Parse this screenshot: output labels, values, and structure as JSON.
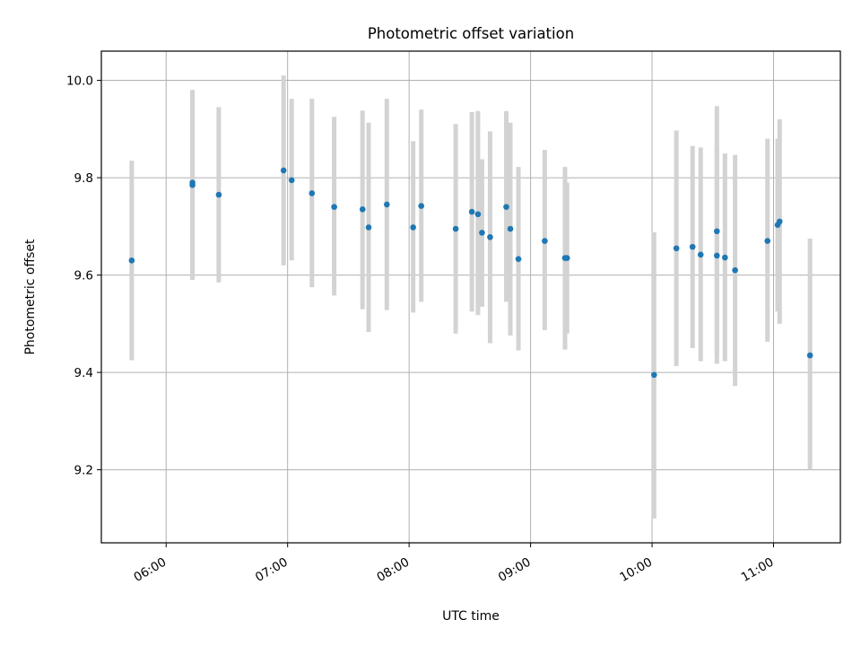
{
  "chart_data": {
    "type": "scatter",
    "title": "Photometric offset variation",
    "xlabel": "UTC time",
    "ylabel": "Photometric offset",
    "x_ticks": [
      "06:00",
      "07:00",
      "08:00",
      "09:00",
      "10:00",
      "11:00"
    ],
    "y_ticks": [
      "9.2",
      "9.4",
      "9.6",
      "9.8",
      "10.0"
    ],
    "xlim": [
      "05:28",
      "11:33"
    ],
    "ylim": [
      9.05,
      10.06
    ],
    "grid": true,
    "colors": {
      "points": "#1f77b4",
      "errorbars": "#d3d3d3",
      "grid": "#b0b0b0"
    },
    "points": [
      {
        "x": "05:43",
        "y": 9.63,
        "err_low": 9.425,
        "err_high": 9.835
      },
      {
        "x": "06:13",
        "y": 9.79,
        "err_low": 9.59,
        "err_high": 9.98
      },
      {
        "x": "06:13",
        "y": 9.785,
        "err_low": 9.59,
        "err_high": 9.98
      },
      {
        "x": "06:26",
        "y": 9.765,
        "err_low": 9.585,
        "err_high": 9.945
      },
      {
        "x": "06:58",
        "y": 9.815,
        "err_low": 9.62,
        "err_high": 10.01
      },
      {
        "x": "07:02",
        "y": 9.795,
        "err_low": 9.63,
        "err_high": 9.962
      },
      {
        "x": "07:12",
        "y": 9.768,
        "err_low": 9.575,
        "err_high": 9.962
      },
      {
        "x": "07:23",
        "y": 9.74,
        "err_low": 9.558,
        "err_high": 9.925
      },
      {
        "x": "07:37",
        "y": 9.735,
        "err_low": 9.53,
        "err_high": 9.938
      },
      {
        "x": "07:40",
        "y": 9.698,
        "err_low": 9.483,
        "err_high": 9.913
      },
      {
        "x": "07:49",
        "y": 9.745,
        "err_low": 9.528,
        "err_high": 9.962
      },
      {
        "x": "08:02",
        "y": 9.698,
        "err_low": 9.523,
        "err_high": 9.875
      },
      {
        "x": "08:06",
        "y": 9.742,
        "err_low": 9.545,
        "err_high": 9.94
      },
      {
        "x": "08:23",
        "y": 9.695,
        "err_low": 9.48,
        "err_high": 9.91
      },
      {
        "x": "08:31",
        "y": 9.73,
        "err_low": 9.525,
        "err_high": 9.935
      },
      {
        "x": "08:34",
        "y": 9.725,
        "err_low": 9.518,
        "err_high": 9.937
      },
      {
        "x": "08:36",
        "y": 9.687,
        "err_low": 9.535,
        "err_high": 9.838
      },
      {
        "x": "08:40",
        "y": 9.678,
        "err_low": 9.46,
        "err_high": 9.895
      },
      {
        "x": "08:48",
        "y": 9.74,
        "err_low": 9.545,
        "err_high": 9.937
      },
      {
        "x": "08:50",
        "y": 9.695,
        "err_low": 9.476,
        "err_high": 9.913
      },
      {
        "x": "08:54",
        "y": 9.633,
        "err_low": 9.445,
        "err_high": 9.822
      },
      {
        "x": "09:07",
        "y": 9.67,
        "err_low": 9.487,
        "err_high": 9.857
      },
      {
        "x": "09:17",
        "y": 9.635,
        "err_low": 9.447,
        "err_high": 9.822
      },
      {
        "x": "09:18",
        "y": 9.635,
        "err_low": 9.48,
        "err_high": 9.79
      },
      {
        "x": "10:01",
        "y": 9.395,
        "err_low": 9.1,
        "err_high": 9.688
      },
      {
        "x": "10:12",
        "y": 9.655,
        "err_low": 9.413,
        "err_high": 9.897
      },
      {
        "x": "10:20",
        "y": 9.658,
        "err_low": 9.45,
        "err_high": 9.865
      },
      {
        "x": "10:24",
        "y": 9.642,
        "err_low": 9.423,
        "err_high": 9.862
      },
      {
        "x": "10:32",
        "y": 9.69,
        "err_low": 9.435,
        "err_high": 9.947
      },
      {
        "x": "10:32",
        "y": 9.64,
        "err_low": 9.418,
        "err_high": 9.862
      },
      {
        "x": "10:36",
        "y": 9.636,
        "err_low": 9.423,
        "err_high": 9.85
      },
      {
        "x": "10:41",
        "y": 9.61,
        "err_low": 9.372,
        "err_high": 9.847
      },
      {
        "x": "10:57",
        "y": 9.67,
        "err_low": 9.463,
        "err_high": 9.88
      },
      {
        "x": "11:02",
        "y": 9.703,
        "err_low": 9.525,
        "err_high": 9.88
      },
      {
        "x": "11:03",
        "y": 9.71,
        "err_low": 9.5,
        "err_high": 9.92
      },
      {
        "x": "11:18",
        "y": 9.435,
        "err_low": 9.2,
        "err_high": 9.675
      }
    ]
  }
}
